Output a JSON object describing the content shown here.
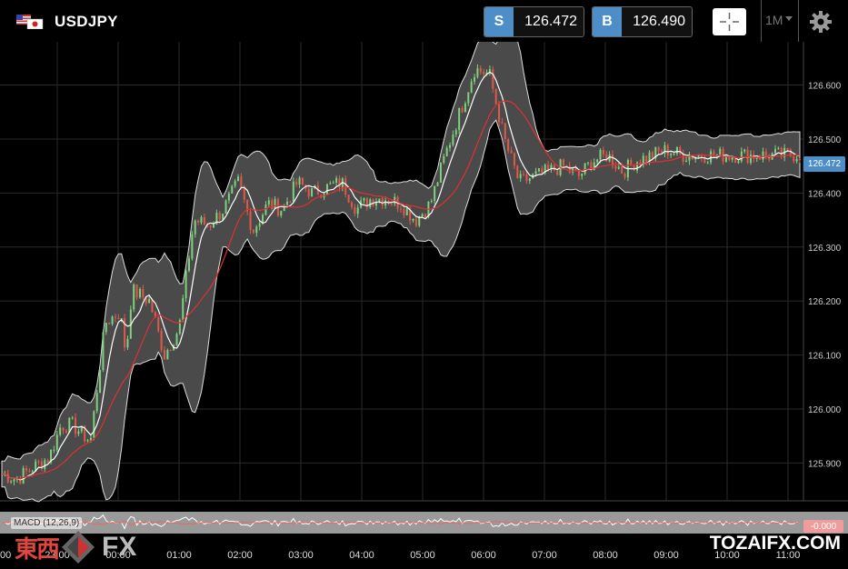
{
  "header": {
    "symbol": "USDJPY",
    "sell": {
      "tag": "S",
      "price": "126.472"
    },
    "buy": {
      "tag": "B",
      "price": "126.490"
    },
    "timeframe": "1M",
    "icons": {
      "flags": "usd-jpy-flags-icon",
      "crosshair": "crosshair-icon",
      "settings": "gear-icon"
    }
  },
  "chart_data": {
    "type": "candlestick",
    "indicators": [
      "Bollinger Bands",
      "Moving Average"
    ],
    "y_ticks": [
      "126.600",
      "126.500",
      "126.400",
      "126.300",
      "126.200",
      "126.100",
      "126.000",
      "125.900"
    ],
    "ylim": [
      125.83,
      126.68
    ],
    "x_ticks": [
      "00",
      "23:00",
      "00:00",
      "01:00",
      "02:00",
      "03:00",
      "04:00",
      "05:00",
      "06:00",
      "07:00",
      "08:00",
      "09:00",
      "10:00",
      "11:00"
    ],
    "last_price": "126.472",
    "series": [
      {
        "name": "price",
        "x": [
          0,
          0.25,
          0.5,
          0.8,
          1.0,
          1.2,
          1.5,
          1.75,
          2.0,
          2.1,
          2.2,
          2.5,
          2.75,
          3.0,
          3.25,
          3.5,
          3.75,
          4.0,
          4.25,
          4.5,
          4.75,
          5.0,
          5.25,
          5.5,
          5.75,
          6.0,
          6.25,
          6.5,
          6.75,
          7.0,
          7.25,
          7.5,
          7.75,
          8.0,
          8.25,
          8.5,
          8.75,
          9.0,
          9.25,
          9.5,
          9.75,
          10.0,
          10.25,
          10.5,
          10.75,
          11.0,
          11.25,
          11.5,
          11.75,
          12.0,
          12.25,
          12.5,
          12.75,
          13.0,
          13.25,
          13.5
        ],
        "values": [
          125.88,
          125.87,
          125.89,
          125.91,
          125.97,
          125.97,
          125.94,
          126.16,
          126.18,
          126.1,
          126.22,
          126.2,
          126.1,
          126.15,
          126.35,
          126.34,
          126.37,
          126.42,
          126.33,
          126.38,
          126.37,
          126.42,
          126.4,
          126.41,
          126.42,
          126.37,
          126.39,
          126.39,
          126.38,
          126.35,
          126.38,
          126.47,
          126.55,
          126.63,
          126.62,
          126.5,
          126.42,
          126.43,
          126.44,
          126.45,
          126.43,
          126.46,
          126.47,
          126.44,
          126.46,
          126.47,
          126.48,
          126.47,
          126.47,
          126.47,
          126.47,
          126.47,
          126.47,
          126.47,
          126.47,
          126.472
        ]
      }
    ],
    "macd": {
      "label": "MACD (12,26,9)",
      "value": "-0.000"
    }
  },
  "watermark": {
    "left_kanji": "東西",
    "left_fx": "FX",
    "right": "TOZAIFX.COM"
  }
}
